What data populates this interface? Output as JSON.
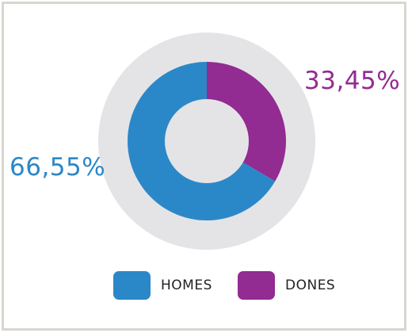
{
  "chart_data": {
    "type": "pie",
    "variant": "donut",
    "categories": [
      "HOMES",
      "DONES"
    ],
    "values": [
      66.55,
      33.45
    ],
    "value_labels": [
      "66,55%",
      "33,45%"
    ],
    "colors": [
      "#2b88c8",
      "#922b92"
    ],
    "backdrop_color": "#e4e4e6",
    "title": "",
    "legend_position": "bottom"
  }
}
